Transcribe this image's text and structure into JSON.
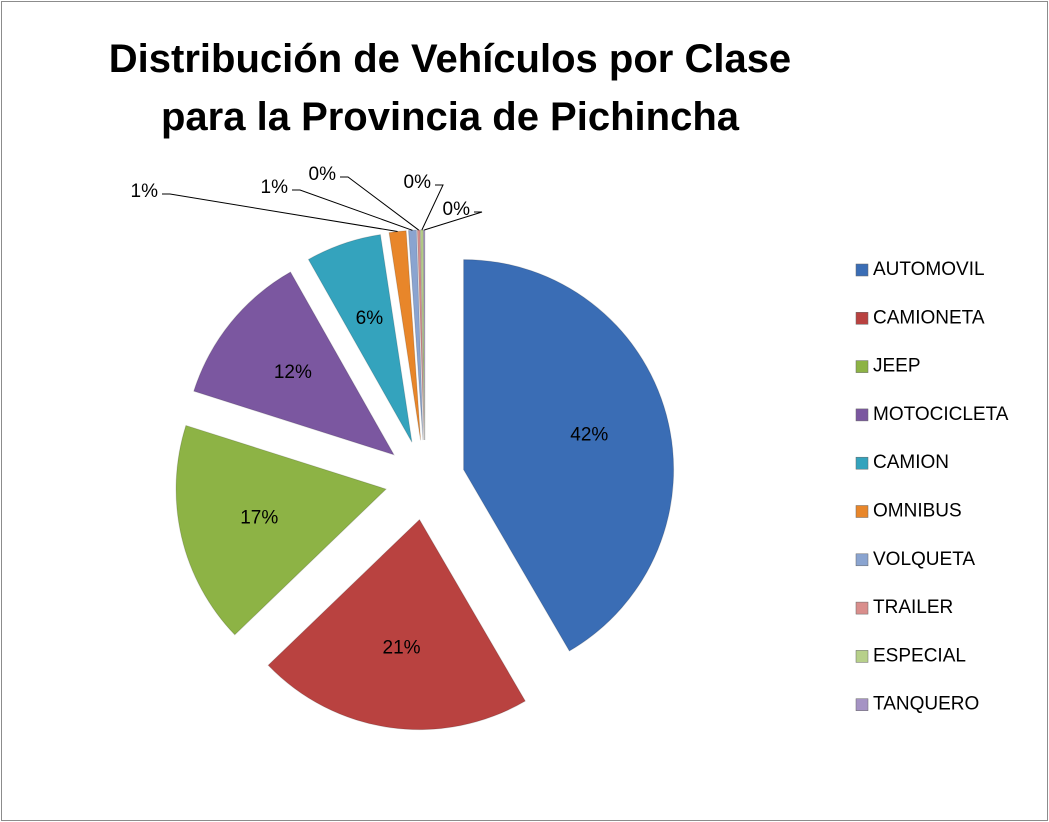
{
  "chart_data": {
    "type": "pie",
    "title": "Distribución de Vehículos por Clase para la Provincia de Pichincha",
    "categories": [
      "AUTOMOVIL",
      "CAMIONETA",
      "JEEP",
      "MOTOCICLETA",
      "CAMION",
      "OMNIBUS",
      "VOLQUETA",
      "TRAILER",
      "ESPECIAL",
      "TANQUERO"
    ],
    "values": [
      41.6,
      21.2,
      17.1,
      11.9,
      5.8,
      1.3,
      0.6,
      0.2,
      0.2,
      0.1
    ],
    "value_labels": [
      "42%",
      "21%",
      "17%",
      "12%",
      "6%",
      "1%",
      "1%",
      "0%",
      "0%",
      "0%"
    ],
    "colors": [
      "#3a6db5",
      "#b94240",
      "#8db345",
      "#7b57a0",
      "#34a3bd",
      "#e8862a",
      "#8aa4d0",
      "#d98e8c",
      "#b7d08a",
      "#a593c4"
    ],
    "legend": "right"
  }
}
